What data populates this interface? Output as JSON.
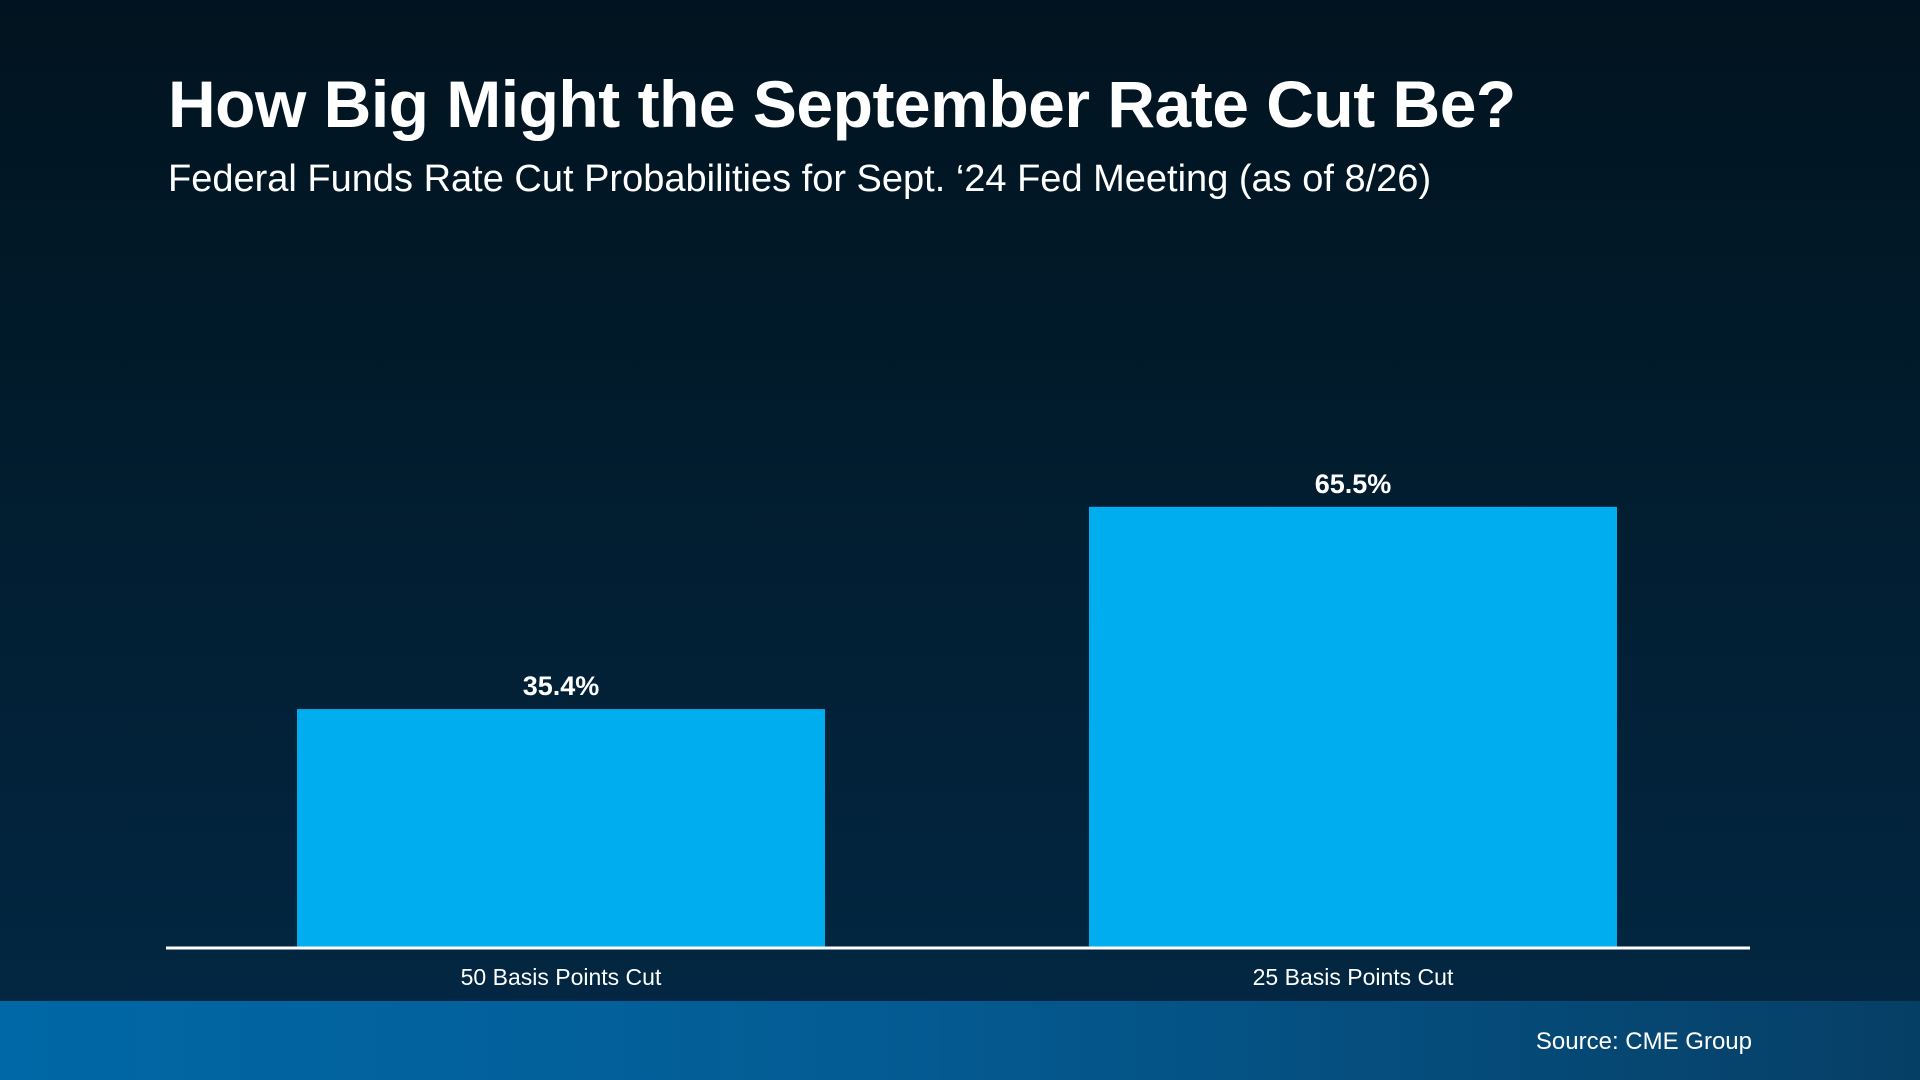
{
  "colors": {
    "bar": "#00adef",
    "axis": "#ffffff",
    "text": "#ffffff"
  },
  "chart_data": {
    "type": "bar",
    "title": "How Big Might the September Rate Cut Be?",
    "subtitle": "Federal Funds Rate Cut Probabilities for Sept. ‘24 Fed Meeting (as of 8/26)",
    "categories": [
      "50 Basis Points Cut",
      "25 Basis Points Cut"
    ],
    "values": [
      35.4,
      65.5
    ],
    "data_labels": [
      "35.4%",
      "65.5%"
    ],
    "xlabel": "",
    "ylabel": "",
    "ylim": [
      0,
      100
    ],
    "grid": false,
    "legend": "none"
  },
  "footer": {
    "source": "Source: CME Group"
  }
}
